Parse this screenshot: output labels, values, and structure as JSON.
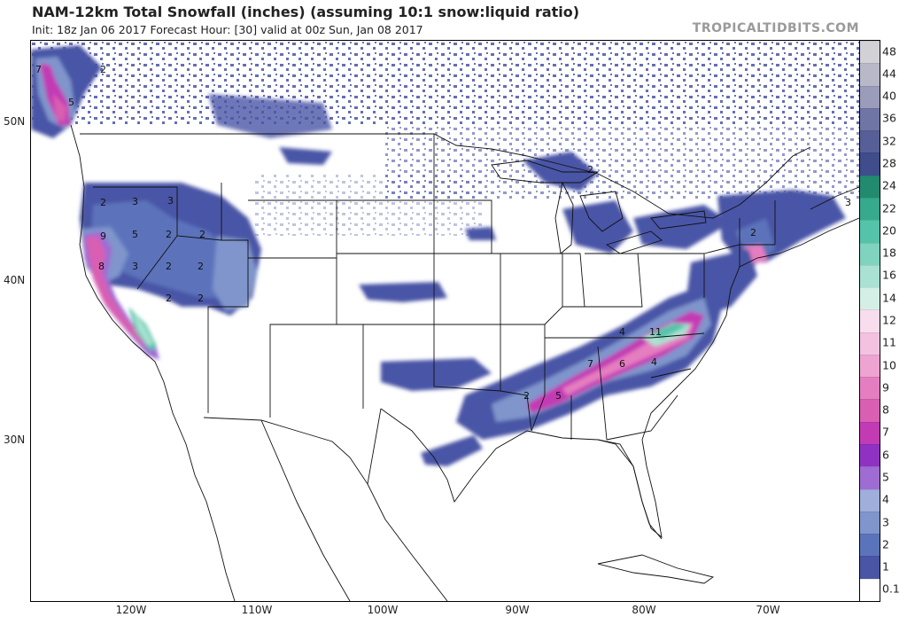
{
  "header": {
    "title": "NAM-12km Total Snowfall (inches) (assuming 10:1 snow:liquid ratio)",
    "subtitle": "Init: 18z Jan 06 2017   Forecast Hour: [30]   valid at 00z Sun, Jan 08 2017",
    "brand": "TROPICALTIDBITS.COM"
  },
  "axes": {
    "lat_labels": [
      "50N",
      "40N",
      "30N"
    ],
    "lon_labels": [
      "120W",
      "110W",
      "100W",
      "90W",
      "80W",
      "70W"
    ]
  },
  "colorbar": {
    "labels": [
      "0.1",
      "1",
      "2",
      "3",
      "4",
      "5",
      "6",
      "7",
      "8",
      "9",
      "10",
      "11",
      "12",
      "14",
      "16",
      "18",
      "20",
      "22",
      "24",
      "28",
      "32",
      "36",
      "40",
      "44",
      "48"
    ],
    "colors": [
      "#ffffff",
      "#4a55a6",
      "#5b73bb",
      "#7f95cc",
      "#a0aedc",
      "#9f6cd3",
      "#8f32c4",
      "#c33bb4",
      "#d85fb2",
      "#e57ec0",
      "#eea4d2",
      "#f3c2e1",
      "#f7dded",
      "#d3efe6",
      "#a9e2d2",
      "#7fd3bf",
      "#55c3aa",
      "#37a98d",
      "#228a6f",
      "#3f4d8c",
      "#575f98",
      "#6f76a6",
      "#9a9cb9",
      "#b8b8c8",
      "#d2d2d6"
    ]
  },
  "map_labels": [
    {
      "text": "7",
      "area": "British Columbia coast"
    },
    {
      "text": "2",
      "area": "British Columbia interior"
    },
    {
      "text": "5",
      "area": "Vancouver Island"
    },
    {
      "text": "2",
      "area": "Washington Cascades"
    },
    {
      "text": "3",
      "area": "Washington interior"
    },
    {
      "text": "3",
      "area": "Idaho panhandle"
    },
    {
      "text": "9",
      "area": "Northern Sierra Nevada"
    },
    {
      "text": "5",
      "area": "Northern Nevada"
    },
    {
      "text": "2",
      "area": "Northern Nevada east"
    },
    {
      "text": "2",
      "area": "Southern Idaho"
    },
    {
      "text": "8",
      "area": "Central Sierra Nevada"
    },
    {
      "text": "3",
      "area": "Central Nevada"
    },
    {
      "text": "2",
      "area": "Central Nevada east"
    },
    {
      "text": "2",
      "area": "Great Basin"
    },
    {
      "text": "2",
      "area": "Southern Nevada"
    },
    {
      "text": "2",
      "area": "Utah"
    },
    {
      "text": "2",
      "area": "Northern Michigan"
    },
    {
      "text": "2",
      "area": "Southern New England"
    },
    {
      "text": "3",
      "area": "Nova Scotia"
    },
    {
      "text": "4",
      "area": "Virginia west"
    },
    {
      "text": "11",
      "area": "Virginia / North Carolina border"
    },
    {
      "text": "7",
      "area": "Southern Appalachians"
    },
    {
      "text": "6",
      "area": "North Carolina piedmont"
    },
    {
      "text": "4",
      "area": "North Carolina east"
    },
    {
      "text": "2",
      "area": "Mississippi"
    },
    {
      "text": "5",
      "area": "Alabama"
    }
  ]
}
